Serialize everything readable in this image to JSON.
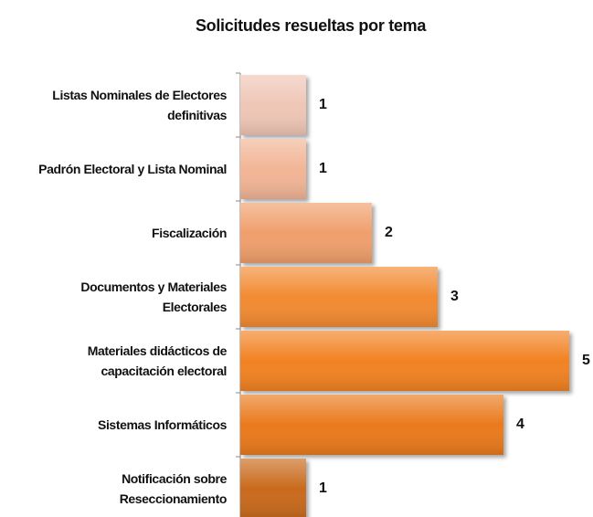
{
  "chart_data": {
    "type": "barh",
    "title": "Solicitudes resueltas por tema",
    "categories": [
      "Listas Nominales de Electores definitivas",
      "Padrón Electoral y Lista Nominal",
      "Fiscalización",
      "Documentos y Materiales Electorales",
      "Materiales didácticos de capacitación electoral",
      "Sistemas Informáticos",
      "Notificación sobre Reseccionamiento"
    ],
    "values": [
      1,
      1,
      2,
      3,
      5,
      4,
      1
    ],
    "colors": [
      "#efc6b6",
      "#f2b596",
      "#f09f6c",
      "#f28b32",
      "#f28220",
      "#ea7a1a",
      "#c96a1c"
    ]
  }
}
